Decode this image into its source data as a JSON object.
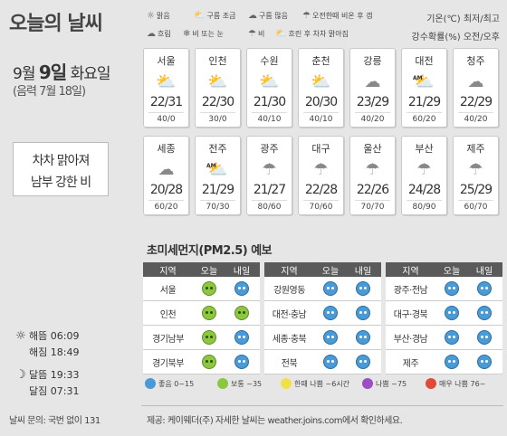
{
  "header": {
    "title": "오늘의 날씨",
    "date_prefix": "9월 ",
    "date_day": "9일",
    "date_suffix": " 화요일",
    "lunar": "(음력 7월 18일)"
  },
  "summary": {
    "line1": "차차 맑아져",
    "line2": "남부 강한 비"
  },
  "legend_icons": [
    {
      "icon": "sun-icon",
      "label": "맑음"
    },
    {
      "icon": "partly-cloudy-icon",
      "label": "구름 조금"
    },
    {
      "icon": "mostly-cloudy-icon",
      "label": "구름 많음"
    },
    {
      "icon": "sun-rain-icon",
      "label": "오전한때 비온 후 갬"
    },
    {
      "icon": "cloud-icon",
      "label": "흐림"
    },
    {
      "icon": "rain-snow-icon",
      "label": "비 또는 눈"
    },
    {
      "icon": "rain-icon",
      "label": "비"
    },
    {
      "icon": "clearing-icon",
      "label": "흐린 후 차차 맑아짐"
    }
  ],
  "units": {
    "line1": "기온(℃) 최저/최고",
    "line2": "강수확률(%) 오전/오후"
  },
  "cities": [
    {
      "name": "서울",
      "icon": "partly-sunny-icon",
      "am": false,
      "temp": "22/31",
      "prec": "40/0"
    },
    {
      "name": "인천",
      "icon": "partly-sunny-icon",
      "am": false,
      "temp": "22/30",
      "prec": "30/0"
    },
    {
      "name": "수원",
      "icon": "partly-sunny-icon",
      "am": false,
      "temp": "21/30",
      "prec": "40/10"
    },
    {
      "name": "춘천",
      "icon": "partly-sunny-icon",
      "am": false,
      "temp": "20/30",
      "prec": "40/10"
    },
    {
      "name": "강릉",
      "icon": "cloud-icon",
      "am": false,
      "temp": "23/29",
      "prec": "40/20"
    },
    {
      "name": "대전",
      "icon": "sun-cloud-icon",
      "am": true,
      "temp": "21/29",
      "prec": "60/20"
    },
    {
      "name": "청주",
      "icon": "cloud-icon",
      "am": false,
      "temp": "22/29",
      "prec": "40/20"
    },
    {
      "name": "세종",
      "icon": "cloud-icon",
      "am": false,
      "temp": "20/28",
      "prec": "60/20"
    },
    {
      "name": "전주",
      "icon": "sun-cloud-icon",
      "am": true,
      "temp": "21/29",
      "prec": "70/30"
    },
    {
      "name": "광주",
      "icon": "rain-icon",
      "am": false,
      "temp": "21/27",
      "prec": "80/60"
    },
    {
      "name": "대구",
      "icon": "rain-icon",
      "am": false,
      "temp": "22/28",
      "prec": "70/60"
    },
    {
      "name": "울산",
      "icon": "rain-icon",
      "am": false,
      "temp": "22/26",
      "prec": "70/70"
    },
    {
      "name": "부산",
      "icon": "rain-icon",
      "am": false,
      "temp": "24/28",
      "prec": "80/90"
    },
    {
      "name": "제주",
      "icon": "rain-icon",
      "am": false,
      "temp": "25/29",
      "prec": "60/70"
    }
  ],
  "pm": {
    "title": "초미세먼지",
    "title_suffix": "(PM2.5) 예보",
    "col_region": "지역",
    "col_today": "오늘",
    "col_tomorrow": "내일",
    "groups": [
      [
        {
          "region": "서울",
          "today": "normal",
          "tomorrow": "good"
        },
        {
          "region": "인천",
          "today": "normal",
          "tomorrow": "normal"
        },
        {
          "region": "경기남부",
          "today": "normal",
          "tomorrow": "good"
        },
        {
          "region": "경기북부",
          "today": "normal",
          "tomorrow": "good"
        }
      ],
      [
        {
          "region": "강원영동",
          "today": "good",
          "tomorrow": "good"
        },
        {
          "region": "대전·충남",
          "today": "good",
          "tomorrow": "good"
        },
        {
          "region": "세종·충북",
          "today": "good",
          "tomorrow": "good"
        },
        {
          "region": "전북",
          "today": "good",
          "tomorrow": "good"
        }
      ],
      [
        {
          "region": "광주·전남",
          "today": "good",
          "tomorrow": "good"
        },
        {
          "region": "대구·경북",
          "today": "good",
          "tomorrow": "good"
        },
        {
          "region": "부산·경남",
          "today": "good",
          "tomorrow": "good"
        },
        {
          "region": "제주",
          "today": "good",
          "tomorrow": "good"
        }
      ]
    ],
    "legend": [
      {
        "label": "좋음 0~15",
        "color": "#4a9ad6"
      },
      {
        "label": "보통 ~35",
        "color": "#8dc63f"
      },
      {
        "label": "한때 나쁨 ~6시간",
        "color": "#f2e04a"
      },
      {
        "label": "나쁨 ~75",
        "color": "#9a4fc3"
      },
      {
        "label": "매우 나쁨 76~",
        "color": "#e0483a"
      }
    ]
  },
  "sun": {
    "rise_label": "해뜸 06:09",
    "set_label": "해짐 18:49"
  },
  "moon": {
    "rise_label": "달뜸 19:33",
    "set_label": "달짐 07:31"
  },
  "contact": "날씨 문의: 국번 없이 131",
  "source": "제공: 케이웨더(주) 자세한 날씨는 weather.joins.com에서 확인하세요."
}
